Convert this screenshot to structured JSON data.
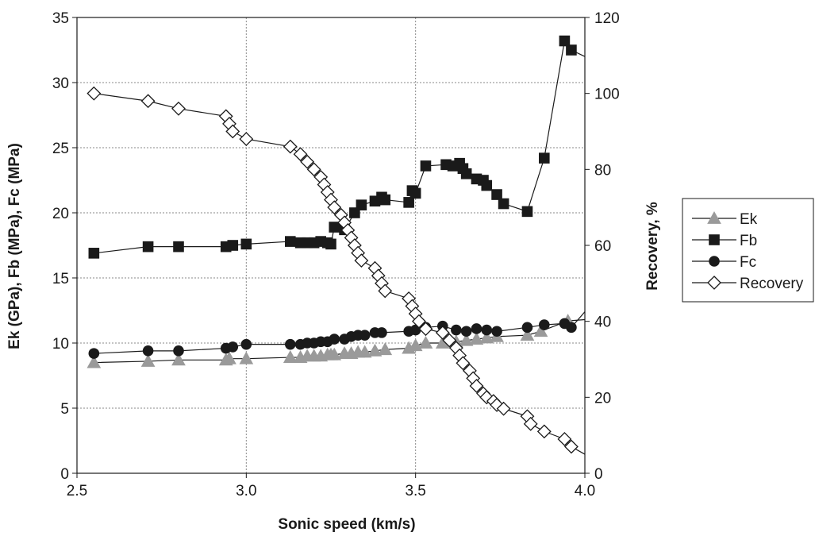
{
  "chart_data": {
    "type": "scatter",
    "title": "",
    "xlabel": "Sonic speed (km/s)",
    "ylabel_left": "Ek (GPa), Fb (MPa), Fc (MPa)",
    "ylabel_right": "Recovery, %",
    "xlim": [
      2.5,
      4.0
    ],
    "ylim_left": [
      0,
      35
    ],
    "ylim_right": [
      0,
      120
    ],
    "x_ticks": [
      "2.5",
      "3.0",
      "3.5",
      "4.0"
    ],
    "y_left_ticks": [
      "0",
      "5",
      "10",
      "15",
      "20",
      "25",
      "30",
      "35"
    ],
    "y_right_ticks": [
      "0",
      "20",
      "40",
      "60",
      "80",
      "100",
      "120"
    ],
    "grid": true,
    "legend_position": "right",
    "series": [
      {
        "name": "Ek",
        "axis": "left",
        "marker": "triangle",
        "color": "#9a9a9a",
        "x": [
          2.55,
          2.71,
          2.8,
          2.94,
          2.95,
          3.0,
          3.13,
          3.16,
          3.18,
          3.2,
          3.22,
          3.24,
          3.25,
          3.26,
          3.29,
          3.31,
          3.33,
          3.35,
          3.38,
          3.41,
          3.48,
          3.5,
          3.53,
          3.58,
          3.62,
          3.65,
          3.68,
          3.71,
          3.74,
          3.83,
          3.87,
          3.95,
          4.0
        ],
        "y": [
          8.5,
          8.6,
          8.7,
          8.7,
          8.8,
          8.8,
          8.9,
          8.9,
          9.0,
          9.0,
          9.0,
          9.1,
          9.1,
          9.1,
          9.2,
          9.2,
          9.3,
          9.3,
          9.4,
          9.5,
          9.6,
          9.8,
          10.0,
          10.0,
          10.1,
          10.2,
          10.3,
          10.4,
          10.5,
          10.6,
          10.9,
          11.7,
          11.8
        ]
      },
      {
        "name": "Fb",
        "axis": "left",
        "marker": "square",
        "color": "#1a1a1a",
        "x": [
          2.55,
          2.71,
          2.8,
          2.94,
          2.96,
          3.0,
          3.13,
          3.16,
          3.18,
          3.2,
          3.22,
          3.24,
          3.25,
          3.26,
          3.29,
          3.32,
          3.34,
          3.38,
          3.4,
          3.41,
          3.48,
          3.49,
          3.5,
          3.53,
          3.59,
          3.61,
          3.63,
          3.64,
          3.65,
          3.68,
          3.7,
          3.71,
          3.74,
          3.76,
          3.83,
          3.88,
          3.94,
          3.96,
          4.0
        ],
        "y": [
          16.9,
          17.4,
          17.4,
          17.4,
          17.5,
          17.6,
          17.8,
          17.7,
          17.7,
          17.7,
          17.8,
          17.7,
          17.6,
          18.9,
          18.7,
          20.0,
          20.6,
          20.9,
          21.2,
          21.0,
          20.8,
          21.7,
          21.5,
          23.6,
          23.7,
          23.6,
          23.8,
          23.4,
          23.0,
          22.6,
          22.5,
          22.1,
          21.4,
          20.7,
          20.1,
          24.2,
          33.2,
          32.5,
          32.0
        ]
      },
      {
        "name": "Fc",
        "axis": "left",
        "marker": "circle",
        "color": "#1a1a1a",
        "x": [
          2.55,
          2.71,
          2.8,
          2.94,
          2.96,
          3.0,
          3.13,
          3.16,
          3.18,
          3.2,
          3.22,
          3.24,
          3.26,
          3.29,
          3.31,
          3.33,
          3.35,
          3.38,
          3.4,
          3.48,
          3.5,
          3.53,
          3.58,
          3.62,
          3.65,
          3.68,
          3.71,
          3.74,
          3.83,
          3.88,
          3.94,
          3.96,
          4.0
        ],
        "y": [
          9.2,
          9.4,
          9.4,
          9.6,
          9.7,
          9.9,
          9.9,
          9.9,
          10.0,
          10.0,
          10.1,
          10.1,
          10.3,
          10.3,
          10.5,
          10.6,
          10.6,
          10.8,
          10.8,
          10.9,
          11.0,
          11.2,
          11.3,
          11.0,
          10.9,
          11.1,
          11.0,
          10.9,
          11.2,
          11.4,
          11.5,
          11.2,
          12.4
        ]
      },
      {
        "name": "Recovery",
        "axis": "right",
        "marker": "diamond",
        "color": "#1a1a1a",
        "x": [
          2.55,
          2.71,
          2.8,
          2.94,
          2.95,
          2.96,
          3.0,
          3.13,
          3.16,
          3.18,
          3.2,
          3.22,
          3.23,
          3.24,
          3.25,
          3.26,
          3.28,
          3.29,
          3.3,
          3.31,
          3.32,
          3.33,
          3.34,
          3.38,
          3.39,
          3.4,
          3.41,
          3.48,
          3.49,
          3.5,
          3.51,
          3.53,
          3.58,
          3.6,
          3.62,
          3.63,
          3.64,
          3.66,
          3.67,
          3.68,
          3.7,
          3.71,
          3.73,
          3.74,
          3.76,
          3.83,
          3.84,
          3.88,
          3.94,
          3.96,
          4.0
        ],
        "y": [
          100,
          98,
          96,
          94,
          92,
          90,
          88,
          86,
          84,
          82,
          80,
          78,
          76,
          74,
          72,
          70,
          68,
          66,
          64,
          62,
          60,
          58,
          56,
          54,
          52,
          50,
          48,
          46,
          44,
          42,
          40,
          38,
          37,
          35,
          33,
          31,
          29,
          27,
          25,
          23,
          21,
          20,
          19,
          18,
          17,
          15,
          13,
          11,
          9,
          7,
          5
        ]
      }
    ]
  }
}
